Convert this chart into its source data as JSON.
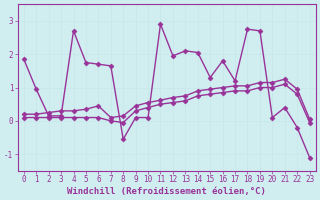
{
  "title": "",
  "xlabel": "Windchill (Refroidissement éolien,°C)",
  "ylabel": "",
  "bg_color": "#d0eef0",
  "line_color": "#993399",
  "grid_color": "#c8e8ec",
  "xlim": [
    -0.5,
    23.5
  ],
  "ylim": [
    -1.5,
    3.5
  ],
  "yticks": [
    -1,
    0,
    1,
    2,
    3
  ],
  "xticks": [
    0,
    1,
    2,
    3,
    4,
    5,
    6,
    7,
    8,
    9,
    10,
    11,
    12,
    13,
    14,
    15,
    16,
    17,
    18,
    19,
    20,
    21,
    22,
    23
  ],
  "series1_x": [
    0,
    1,
    2,
    3,
    4,
    5,
    6,
    7,
    8,
    9,
    10,
    11,
    12,
    13,
    14,
    15,
    16,
    17,
    18,
    19,
    20,
    21,
    22,
    23
  ],
  "series1_y": [
    1.85,
    0.95,
    0.15,
    0.15,
    2.7,
    1.75,
    1.7,
    1.65,
    -0.55,
    0.1,
    0.1,
    2.9,
    1.95,
    2.1,
    2.05,
    1.3,
    1.8,
    1.2,
    2.75,
    2.7,
    0.1,
    0.4,
    -0.2,
    -1.1
  ],
  "series2_x": [
    0,
    1,
    2,
    3,
    4,
    5,
    6,
    7,
    8,
    9,
    10,
    11,
    12,
    13,
    14,
    15,
    16,
    17,
    18,
    19,
    20,
    21,
    22,
    23
  ],
  "series2_y": [
    0.2,
    0.2,
    0.25,
    0.3,
    0.3,
    0.35,
    0.45,
    0.1,
    0.15,
    0.45,
    0.55,
    0.62,
    0.7,
    0.75,
    0.9,
    0.95,
    1.0,
    1.05,
    1.05,
    1.15,
    1.15,
    1.25,
    0.95,
    0.05
  ],
  "series3_x": [
    0,
    1,
    2,
    3,
    4,
    5,
    6,
    7,
    8,
    9,
    10,
    11,
    12,
    13,
    14,
    15,
    16,
    17,
    18,
    19,
    20,
    21,
    22,
    23
  ],
  "series3_y": [
    0.1,
    0.1,
    0.1,
    0.1,
    0.1,
    0.1,
    0.1,
    0.0,
    -0.05,
    0.3,
    0.4,
    0.5,
    0.55,
    0.6,
    0.75,
    0.8,
    0.85,
    0.9,
    0.9,
    1.0,
    1.0,
    1.1,
    0.8,
    -0.05
  ],
  "marker": "D",
  "marker_size": 2.5,
  "linewidth": 1.0,
  "tick_fontsize": 5.5,
  "xlabel_fontsize": 6.5
}
